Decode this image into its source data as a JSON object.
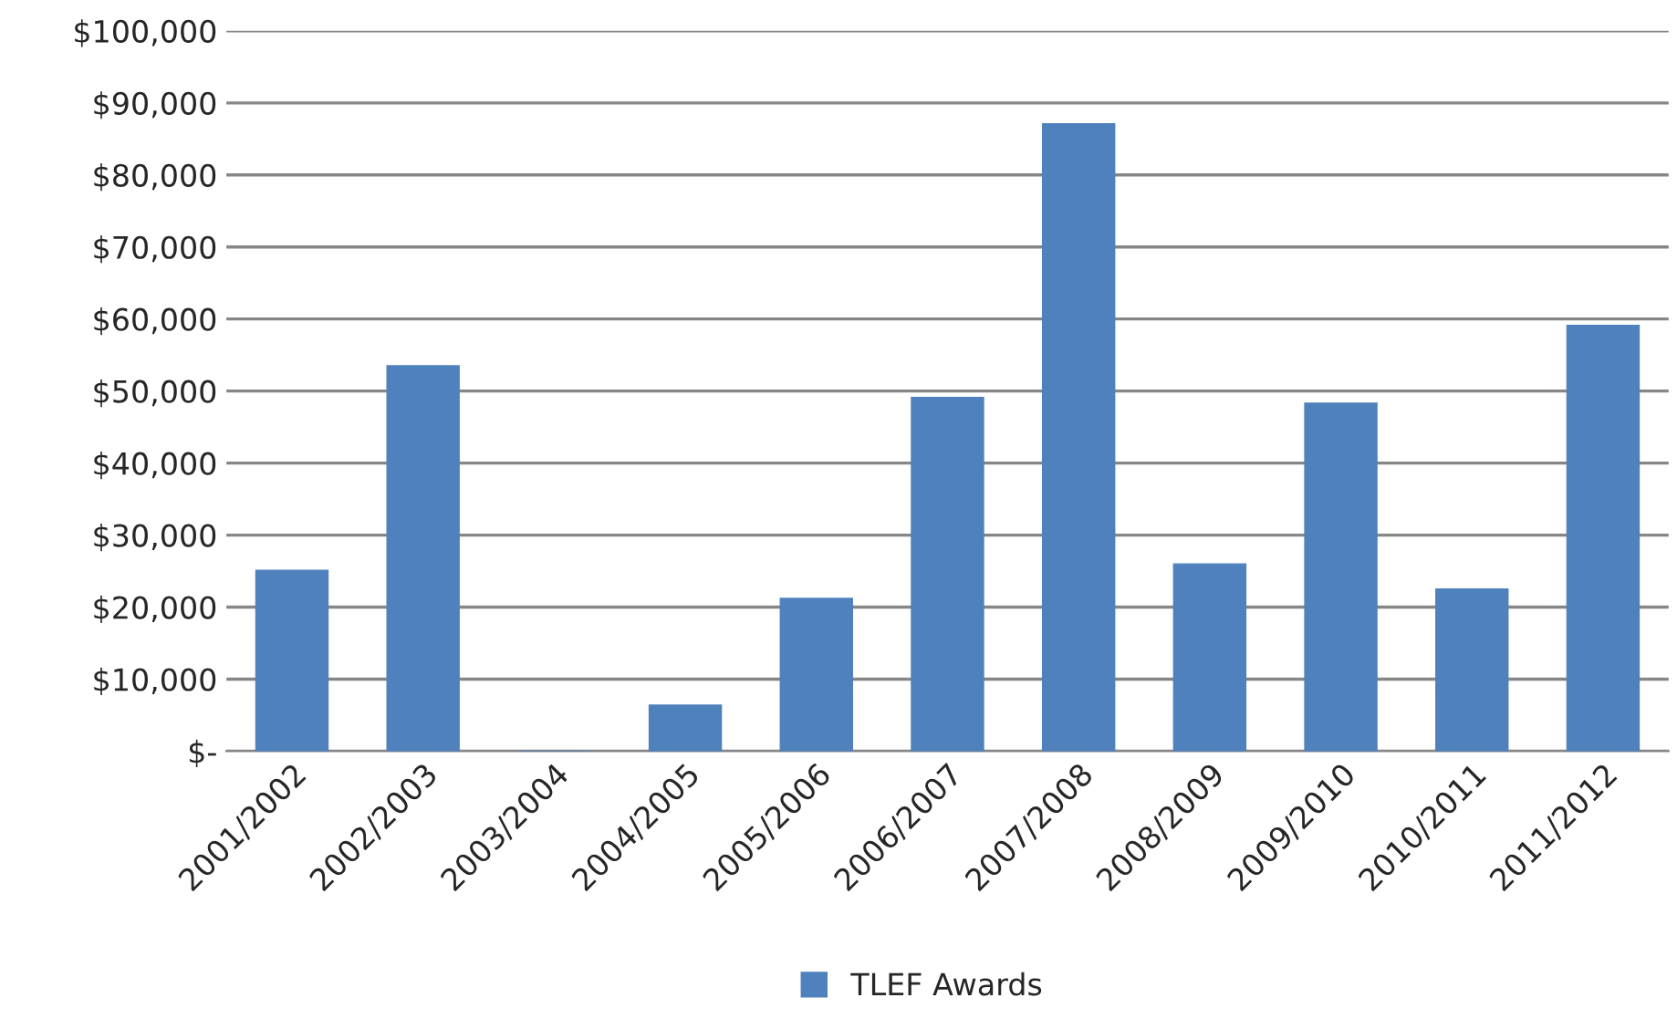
{
  "chart_data": {
    "type": "bar",
    "categories": [
      "2001/2002",
      "2002/2003",
      "2003/2004",
      "2004/2005",
      "2005/2006",
      "2006/2007",
      "2007/2008",
      "2008/2009",
      "2009/2010",
      "2010/2011",
      "2011/2012"
    ],
    "series": [
      {
        "name": "TLEF Awards",
        "color": "#4f81bd",
        "values": [
          25100,
          53500,
          0,
          6400,
          21200,
          49100,
          87100,
          26000,
          48300,
          22500,
          59100
        ]
      }
    ],
    "ylim": [
      0,
      100000
    ],
    "yticks": [
      {
        "value": 0,
        "label": "$-"
      },
      {
        "value": 10000,
        "label": "$10,000"
      },
      {
        "value": 20000,
        "label": "$20,000"
      },
      {
        "value": 30000,
        "label": "$30,000"
      },
      {
        "value": 40000,
        "label": "$40,000"
      },
      {
        "value": 50000,
        "label": "$50,000"
      },
      {
        "value": 60000,
        "label": "$60,000"
      },
      {
        "value": 70000,
        "label": "$70,000"
      },
      {
        "value": 80000,
        "label": "$80,000"
      },
      {
        "value": 90000,
        "label": "$90,000"
      },
      {
        "value": 100000,
        "label": "$100,000"
      }
    ],
    "grid": "y",
    "legend": "bottom"
  }
}
